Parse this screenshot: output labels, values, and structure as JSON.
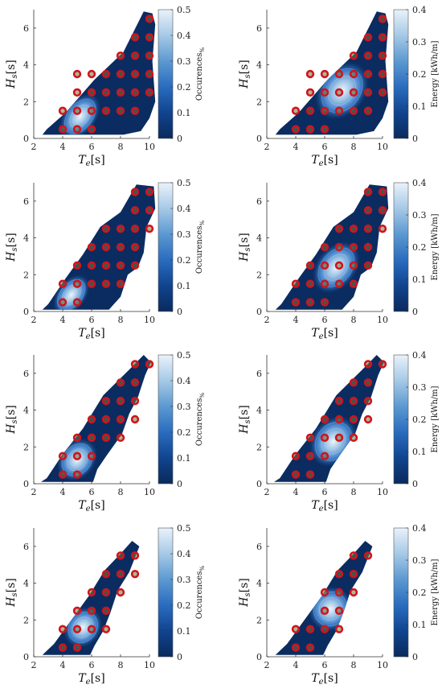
{
  "chart_data": [
    {
      "type": "contour",
      "panel": "A",
      "kind": "occ",
      "xlabel_text": "T",
      "xlabel_sub": "e",
      "xlabel_unit": "[s]",
      "ylabel_text": "H",
      "ylabel_sub": "s",
      "ylabel_unit": "[s]",
      "xlim": [
        2,
        10
      ],
      "ylim": [
        0,
        7
      ],
      "xticks": [
        "2",
        "4",
        "6",
        "8",
        "10"
      ],
      "yticks": [
        "0",
        "2",
        "4",
        "6"
      ],
      "colorbar": {
        "label": "Occurences",
        "label_sub": "%",
        "min": 0,
        "max": 0.5,
        "ticks": [
          "0",
          "0.1",
          "0.2",
          "0.3",
          "0.4",
          "0.5"
        ]
      },
      "points": [
        [
          4,
          0.5
        ],
        [
          5,
          0.5
        ],
        [
          6,
          0.5
        ],
        [
          4,
          1.5
        ],
        [
          5,
          1.5
        ],
        [
          6,
          1.5
        ],
        [
          7,
          1.5
        ],
        [
          8,
          1.5
        ],
        [
          9,
          1.5
        ],
        [
          5,
          2.5
        ],
        [
          6,
          2.5
        ],
        [
          7,
          2.5
        ],
        [
          8,
          2.5
        ],
        [
          9,
          2.5
        ],
        [
          10,
          2.5
        ],
        [
          5,
          3.5
        ],
        [
          6,
          3.5
        ],
        [
          7,
          3.5
        ],
        [
          8,
          3.5
        ],
        [
          9,
          3.5
        ],
        [
          10,
          3.5
        ],
        [
          8,
          4.5
        ],
        [
          9,
          4.5
        ],
        [
          10,
          4.5
        ],
        [
          9,
          5.5
        ],
        [
          10,
          5.5
        ],
        [
          10,
          6.5
        ]
      ]
    },
    {
      "type": "contour",
      "panel": "A",
      "kind": "energy",
      "xlabel_text": "T",
      "xlabel_sub": "e",
      "xlabel_unit": "[s]",
      "ylabel_text": "H",
      "ylabel_sub": "s",
      "ylabel_unit": "[s]",
      "xlim": [
        2,
        10
      ],
      "ylim": [
        0,
        7
      ],
      "xticks": [
        "2",
        "4",
        "6",
        "8",
        "10"
      ],
      "yticks": [
        "0",
        "2",
        "4",
        "6"
      ],
      "colorbar": {
        "label": "Energy [kWh/m]",
        "label_sub": "",
        "min": 0,
        "max": 0.4,
        "ticks": [
          "0",
          "0.1",
          "0.2",
          "0.3",
          "0.4"
        ]
      },
      "points": [
        [
          4,
          0.5
        ],
        [
          5,
          0.5
        ],
        [
          6,
          0.5
        ],
        [
          4,
          1.5
        ],
        [
          5,
          1.5
        ],
        [
          6,
          1.5
        ],
        [
          7,
          1.5
        ],
        [
          8,
          1.5
        ],
        [
          9,
          1.5
        ],
        [
          5,
          2.5
        ],
        [
          6,
          2.5
        ],
        [
          7,
          2.5
        ],
        [
          8,
          2.5
        ],
        [
          9,
          2.5
        ],
        [
          10,
          2.5
        ],
        [
          5,
          3.5
        ],
        [
          6,
          3.5
        ],
        [
          7,
          3.5
        ],
        [
          8,
          3.5
        ],
        [
          9,
          3.5
        ],
        [
          10,
          3.5
        ],
        [
          8,
          4.5
        ],
        [
          9,
          4.5
        ],
        [
          10,
          4.5
        ],
        [
          9,
          5.5
        ],
        [
          10,
          5.5
        ],
        [
          10,
          6.5
        ]
      ]
    },
    {
      "type": "contour",
      "panel": "B",
      "kind": "occ",
      "xlabel_text": "T",
      "xlabel_sub": "e",
      "xlabel_unit": "[s]",
      "ylabel_text": "H",
      "ylabel_sub": "s",
      "ylabel_unit": "[s]",
      "xlim": [
        2,
        10
      ],
      "ylim": [
        0,
        7
      ],
      "xticks": [
        "2",
        "4",
        "6",
        "8",
        "10"
      ],
      "yticks": [
        "0",
        "2",
        "4",
        "6"
      ],
      "colorbar": {
        "label": "Occurences",
        "label_sub": "%",
        "min": 0,
        "max": 0.5,
        "ticks": [
          "0",
          "0.1",
          "0.2",
          "0.3",
          "0.4",
          "0.5"
        ]
      },
      "points": [
        [
          4,
          0.5
        ],
        [
          5,
          0.5
        ],
        [
          4,
          1.5
        ],
        [
          5,
          1.5
        ],
        [
          6,
          1.5
        ],
        [
          7,
          1.5
        ],
        [
          8,
          1.5
        ],
        [
          5,
          2.5
        ],
        [
          6,
          2.5
        ],
        [
          7,
          2.5
        ],
        [
          8,
          2.5
        ],
        [
          9,
          2.5
        ],
        [
          6,
          3.5
        ],
        [
          7,
          3.5
        ],
        [
          8,
          3.5
        ],
        [
          9,
          3.5
        ],
        [
          7,
          4.5
        ],
        [
          8,
          4.5
        ],
        [
          9,
          4.5
        ],
        [
          10,
          4.5
        ],
        [
          9,
          5.5
        ],
        [
          10,
          5.5
        ],
        [
          9,
          6.5
        ],
        [
          10,
          6.5
        ]
      ]
    },
    {
      "type": "contour",
      "panel": "B",
      "kind": "energy",
      "xlabel_text": "T",
      "xlabel_sub": "e",
      "xlabel_unit": "[s]",
      "ylabel_text": "H",
      "ylabel_sub": "s",
      "ylabel_unit": "[s]",
      "xlim": [
        2,
        10
      ],
      "ylim": [
        0,
        7
      ],
      "xticks": [
        "2",
        "4",
        "6",
        "8",
        "10"
      ],
      "yticks": [
        "0",
        "2",
        "4",
        "6"
      ],
      "colorbar": {
        "label": "Energy [kWh/m]",
        "label_sub": "",
        "min": 0,
        "max": 0.4,
        "ticks": [
          "0",
          "0.1",
          "0.2",
          "0.3",
          "0.4"
        ]
      },
      "points": [
        [
          4,
          0.5
        ],
        [
          5,
          0.5
        ],
        [
          6,
          0.5
        ],
        [
          4,
          1.5
        ],
        [
          5,
          1.5
        ],
        [
          6,
          1.5
        ],
        [
          7,
          1.5
        ],
        [
          8,
          1.5
        ],
        [
          5,
          2.5
        ],
        [
          6,
          2.5
        ],
        [
          7,
          2.5
        ],
        [
          8,
          2.5
        ],
        [
          9,
          2.5
        ],
        [
          6,
          3.5
        ],
        [
          7,
          3.5
        ],
        [
          8,
          3.5
        ],
        [
          9,
          3.5
        ],
        [
          7,
          4.5
        ],
        [
          8,
          4.5
        ],
        [
          9,
          4.5
        ],
        [
          10,
          4.5
        ],
        [
          9,
          5.5
        ],
        [
          10,
          5.5
        ],
        [
          9,
          6.5
        ],
        [
          10,
          6.5
        ]
      ]
    },
    {
      "type": "contour",
      "panel": "C",
      "kind": "occ",
      "xlabel_text": "T",
      "xlabel_sub": "e",
      "xlabel_unit": "[s]",
      "ylabel_text": "H",
      "ylabel_sub": "s",
      "ylabel_unit": "[s]",
      "xlim": [
        2,
        10
      ],
      "ylim": [
        0,
        7
      ],
      "xticks": [
        "2",
        "4",
        "6",
        "8",
        "10"
      ],
      "yticks": [
        "0",
        "2",
        "4",
        "6"
      ],
      "colorbar": {
        "label": "Occurences",
        "label_sub": "%",
        "min": 0,
        "max": 0.5,
        "ticks": [
          "0",
          "0.1",
          "0.2",
          "0.3",
          "0.4",
          "0.5"
        ]
      },
      "points": [
        [
          4,
          0.5
        ],
        [
          5,
          0.5
        ],
        [
          4,
          1.5
        ],
        [
          5,
          1.5
        ],
        [
          6,
          1.5
        ],
        [
          5,
          2.5
        ],
        [
          6,
          2.5
        ],
        [
          7,
          2.5
        ],
        [
          8,
          2.5
        ],
        [
          6,
          3.5
        ],
        [
          7,
          3.5
        ],
        [
          8,
          3.5
        ],
        [
          9,
          3.5
        ],
        [
          7,
          4.5
        ],
        [
          8,
          4.5
        ],
        [
          9,
          4.5
        ],
        [
          8,
          5.5
        ],
        [
          9,
          5.5
        ],
        [
          9,
          6.5
        ],
        [
          10,
          6.5
        ]
      ]
    },
    {
      "type": "contour",
      "panel": "C",
      "kind": "energy",
      "xlabel_text": "T",
      "xlabel_sub": "e",
      "xlabel_unit": "[s]",
      "ylabel_text": "H",
      "ylabel_sub": "s",
      "ylabel_unit": "[s]",
      "xlim": [
        2,
        10
      ],
      "ylim": [
        0,
        7
      ],
      "xticks": [
        "2",
        "4",
        "6",
        "8",
        "10"
      ],
      "yticks": [
        "0",
        "2",
        "4",
        "6"
      ],
      "colorbar": {
        "label": "Energy [kWh/m]",
        "label_sub": "",
        "min": 0,
        "max": 0.4,
        "ticks": [
          "0",
          "0.1",
          "0.2",
          "0.3",
          "0.4"
        ]
      },
      "points": [
        [
          4,
          0.5
        ],
        [
          5,
          0.5
        ],
        [
          4,
          1.5
        ],
        [
          5,
          1.5
        ],
        [
          6,
          1.5
        ],
        [
          5,
          2.5
        ],
        [
          6,
          2.5
        ],
        [
          7,
          2.5
        ],
        [
          8,
          2.5
        ],
        [
          6,
          3.5
        ],
        [
          7,
          3.5
        ],
        [
          8,
          3.5
        ],
        [
          9,
          3.5
        ],
        [
          7,
          4.5
        ],
        [
          8,
          4.5
        ],
        [
          9,
          4.5
        ],
        [
          8,
          5.5
        ],
        [
          9,
          5.5
        ],
        [
          9,
          6.5
        ],
        [
          10,
          6.5
        ]
      ]
    },
    {
      "type": "contour",
      "panel": "D",
      "kind": "occ",
      "xlabel_text": "T",
      "xlabel_sub": "e",
      "xlabel_unit": "[s]",
      "ylabel_text": "H",
      "ylabel_sub": "s",
      "ylabel_unit": "[s]",
      "xlim": [
        2,
        10
      ],
      "ylim": [
        0,
        7
      ],
      "xticks": [
        "2",
        "4",
        "6",
        "8",
        "10"
      ],
      "yticks": [
        "0",
        "2",
        "4",
        "6"
      ],
      "colorbar": {
        "label": "Occurences",
        "label_sub": "%",
        "min": 0,
        "max": 0.5,
        "ticks": [
          "0",
          "0.1",
          "0.2",
          "0.3",
          "0.4",
          "0.5"
        ]
      },
      "points": [
        [
          4,
          0.5
        ],
        [
          5,
          0.5
        ],
        [
          4,
          1.5
        ],
        [
          5,
          1.5
        ],
        [
          6,
          1.5
        ],
        [
          7,
          1.5
        ],
        [
          5,
          2.5
        ],
        [
          6,
          2.5
        ],
        [
          7,
          2.5
        ],
        [
          6,
          3.5
        ],
        [
          7,
          3.5
        ],
        [
          8,
          3.5
        ],
        [
          7,
          4.5
        ],
        [
          8,
          4.5
        ],
        [
          9,
          4.5
        ],
        [
          8,
          5.5
        ],
        [
          9,
          5.5
        ]
      ]
    },
    {
      "type": "contour",
      "panel": "D",
      "kind": "energy",
      "xlabel_text": "T",
      "xlabel_sub": "e",
      "xlabel_unit": "[s]",
      "ylabel_text": "H",
      "ylabel_sub": "s",
      "ylabel_unit": "[s]",
      "xlim": [
        2,
        10
      ],
      "ylim": [
        0,
        7
      ],
      "xticks": [
        "2",
        "4",
        "6",
        "8",
        "10"
      ],
      "yticks": [
        "0",
        "2",
        "4",
        "6"
      ],
      "colorbar": {
        "label": "Energy [kWh/m]",
        "label_sub": "",
        "min": 0,
        "max": 0.4,
        "ticks": [
          "0",
          "0.1",
          "0.2",
          "0.3",
          "0.4"
        ]
      },
      "points": [
        [
          4,
          0.5
        ],
        [
          5,
          0.5
        ],
        [
          4,
          1.5
        ],
        [
          5,
          1.5
        ],
        [
          6,
          1.5
        ],
        [
          7,
          1.5
        ],
        [
          6,
          2.5
        ],
        [
          7,
          2.5
        ],
        [
          6,
          3.5
        ],
        [
          7,
          3.5
        ],
        [
          8,
          3.5
        ],
        [
          7,
          4.5
        ],
        [
          8,
          4.5
        ],
        [
          8,
          5.5
        ],
        [
          9,
          5.5
        ]
      ]
    }
  ]
}
